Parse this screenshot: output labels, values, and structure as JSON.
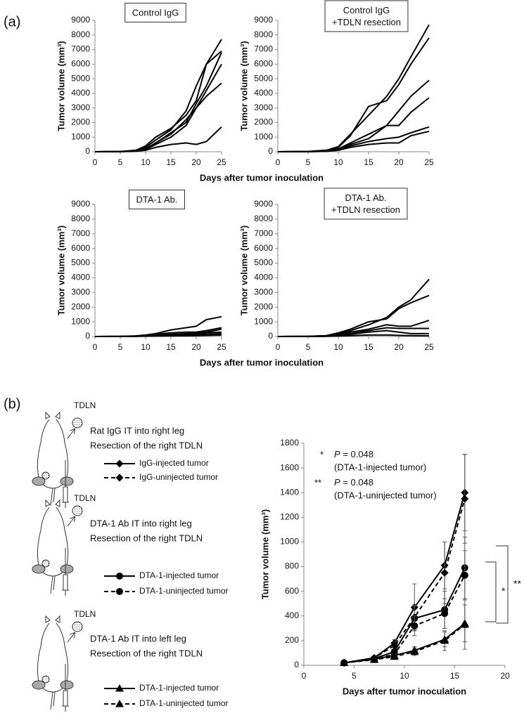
{
  "panels": [
    "(a)",
    "(b)"
  ],
  "schematics": [
    {
      "node": "TDLN",
      "lines": [
        "Rat IgG IT into right leg",
        "Resection of the right TDLN"
      ]
    },
    {
      "node": "TDLN",
      "lines": [
        "DTA-1 Ab IT into right leg",
        "Resection of the right TDLN"
      ]
    },
    {
      "node": "TDLN",
      "lines": [
        "DTA-1 Ab IT into left leg",
        "Resection of the right TDLN"
      ]
    }
  ],
  "chart_data": [
    {
      "type": "line",
      "title": [
        "Control IgG"
      ],
      "ylabel": "Tumor volume (mm³)",
      "xlabel": "Days after tumor inoculation",
      "x": [
        0,
        5,
        8,
        10,
        12,
        15,
        18,
        20,
        22,
        25
      ],
      "xlim": [
        0,
        25
      ],
      "xticks": [
        0,
        5,
        10,
        15,
        20,
        25
      ],
      "ylim": [
        0,
        9000
      ],
      "yticks": [
        0,
        1000,
        2000,
        3000,
        4000,
        5000,
        6000,
        7000,
        8000,
        9000
      ],
      "series": [
        {
          "color": "#000000",
          "values": [
            0,
            20,
            100,
            300,
            800,
            1500,
            2800,
            4500,
            6000,
            7700
          ]
        },
        {
          "color": "#000000",
          "values": [
            0,
            10,
            80,
            400,
            1000,
            1600,
            2500,
            3500,
            6000,
            6900
          ]
        },
        {
          "color": "#000000",
          "values": [
            0,
            10,
            60,
            200,
            600,
            1300,
            2000,
            3300,
            4500,
            6800
          ]
        },
        {
          "color": "#000000",
          "values": [
            0,
            10,
            50,
            150,
            500,
            1000,
            1800,
            3000,
            4200,
            6000
          ]
        },
        {
          "color": "#000000",
          "values": [
            0,
            10,
            50,
            200,
            600,
            1200,
            2200,
            3000,
            3800,
            4700
          ]
        },
        {
          "color": "#000000",
          "values": [
            0,
            5,
            30,
            100,
            300,
            500,
            600,
            500,
            700,
            1700
          ]
        }
      ]
    },
    {
      "type": "line",
      "title": [
        "Control IgG",
        "+TDLN resection"
      ],
      "ylabel": "Tumor volume (mm³)",
      "x": [
        0,
        5,
        8,
        10,
        12,
        15,
        18,
        20,
        22,
        25
      ],
      "xlim": [
        0,
        25
      ],
      "xticks": [
        0,
        5,
        10,
        15,
        20,
        25
      ],
      "ylim": [
        0,
        9000
      ],
      "yticks": [
        0,
        1000,
        2000,
        3000,
        4000,
        5000,
        6000,
        7000,
        8000,
        9000
      ],
      "series": [
        {
          "color": "#000000",
          "values": [
            0,
            20,
            100,
            350,
            1200,
            2500,
            3800,
            5000,
            6500,
            8700
          ]
        },
        {
          "color": "#000000",
          "values": [
            0,
            20,
            100,
            300,
            1100,
            3100,
            3500,
            4600,
            6000,
            7800
          ]
        },
        {
          "color": "#000000",
          "values": [
            0,
            10,
            50,
            200,
            600,
            1200,
            1800,
            2800,
            3800,
            4900
          ]
        },
        {
          "color": "#000000",
          "values": [
            0,
            10,
            50,
            150,
            500,
            900,
            1800,
            1800,
            2700,
            3700
          ]
        },
        {
          "color": "#000000",
          "values": [
            0,
            5,
            30,
            100,
            400,
            700,
            900,
            1000,
            1300,
            1700
          ]
        },
        {
          "color": "#000000",
          "values": [
            0,
            5,
            30,
            100,
            300,
            500,
            600,
            600,
            1100,
            1400
          ]
        }
      ]
    },
    {
      "type": "line",
      "title": [
        "DTA-1 Ab."
      ],
      "ylabel": "Tumor volume (mm³)",
      "xlabel": "Days after tumor inoculation",
      "x": [
        0,
        5,
        8,
        10,
        12,
        15,
        18,
        20,
        22,
        25
      ],
      "xlim": [
        0,
        25
      ],
      "xticks": [
        0,
        5,
        10,
        15,
        20,
        25
      ],
      "ylim": [
        0,
        9000
      ],
      "yticks": [
        0,
        1000,
        2000,
        3000,
        4000,
        5000,
        6000,
        7000,
        8000,
        9000
      ],
      "series": [
        {
          "color": "#000000",
          "values": [
            0,
            10,
            40,
            100,
            200,
            450,
            600,
            700,
            1150,
            1350
          ]
        },
        {
          "color": "#000000",
          "values": [
            0,
            5,
            30,
            80,
            150,
            250,
            300,
            300,
            400,
            600
          ]
        },
        {
          "color": "#000000",
          "values": [
            0,
            5,
            20,
            60,
            100,
            150,
            200,
            250,
            300,
            500
          ]
        },
        {
          "color": "#000000",
          "values": [
            0,
            5,
            20,
            50,
            80,
            100,
            150,
            200,
            250,
            300
          ]
        },
        {
          "color": "#000000",
          "values": [
            0,
            5,
            10,
            30,
            50,
            80,
            100,
            150,
            150,
            200
          ]
        },
        {
          "color": "#000000",
          "values": [
            0,
            0,
            10,
            20,
            30,
            40,
            50,
            60,
            80,
            100
          ]
        }
      ]
    },
    {
      "type": "line",
      "title": [
        "DTA-1 Ab.",
        "+TDLN resection"
      ],
      "ylabel": "Tumor volume (mm³)",
      "x": [
        0,
        5,
        8,
        10,
        12,
        15,
        18,
        20,
        22,
        25
      ],
      "xlim": [
        0,
        25
      ],
      "xticks": [
        0,
        5,
        10,
        15,
        20,
        25
      ],
      "ylim": [
        0,
        9000
      ],
      "yticks": [
        0,
        1000,
        2000,
        3000,
        4000,
        5000,
        6000,
        7000,
        8000,
        9000
      ],
      "series": [
        {
          "color": "#000000",
          "values": [
            0,
            10,
            50,
            200,
            400,
            800,
            1300,
            2000,
            2500,
            3900
          ]
        },
        {
          "color": "#000000",
          "values": [
            0,
            10,
            60,
            250,
            500,
            1000,
            1200,
            1900,
            2300,
            2800
          ]
        },
        {
          "color": "#000000",
          "values": [
            0,
            10,
            50,
            150,
            300,
            500,
            800,
            700,
            700,
            1100
          ]
        },
        {
          "color": "#000000",
          "values": [
            0,
            5,
            30,
            100,
            200,
            400,
            600,
            550,
            550,
            550
          ]
        },
        {
          "color": "#000000",
          "values": [
            0,
            5,
            20,
            80,
            150,
            300,
            400,
            300,
            200,
            200
          ]
        },
        {
          "color": "#000000",
          "values": [
            0,
            0,
            10,
            30,
            60,
            100,
            100,
            80,
            60,
            50
          ]
        }
      ]
    },
    {
      "type": "errorline",
      "ylabel": "Tumor volume (mm³)",
      "xlabel": "Days after tumor inoculation",
      "x": [
        4,
        7,
        9,
        11,
        14,
        16
      ],
      "xlim": [
        0,
        20
      ],
      "xticks": [
        0,
        5,
        10,
        15,
        20
      ],
      "ylim": [
        0,
        1800
      ],
      "yticks": [
        0,
        200,
        400,
        600,
        800,
        1000,
        1200,
        1400,
        1600,
        1800
      ],
      "annotations": [
        {
          "symbol": "*",
          "italic": "P",
          "text": " = 0.048",
          "note": "(DTA-1-injected tumor)"
        },
        {
          "symbol": "**",
          "italic": "P",
          "text": " = 0.048",
          "note": "(DTA-1-uninjected tumor)"
        }
      ],
      "brackets": [
        "*",
        "**"
      ],
      "series": [
        {
          "name": "IgG-injected tumor",
          "color": "#000000",
          "marker": "diamond",
          "dashed": false,
          "values": [
            20,
            60,
            180,
            470,
            810,
            1400
          ],
          "errors": [
            5,
            10,
            30,
            190,
            190,
            310
          ]
        },
        {
          "name": "IgG-uninjected tumor",
          "color": "#000000",
          "marker": "diamond",
          "dashed": true,
          "values": [
            20,
            60,
            160,
            390,
            750,
            1350
          ],
          "errors": [
            5,
            10,
            30,
            100,
            250,
            360
          ]
        },
        {
          "name": "DTA-1-injected tumor",
          "color": "#000000",
          "marker": "circle",
          "dashed": false,
          "values": [
            20,
            55,
            110,
            380,
            450,
            790
          ],
          "errors": [
            5,
            10,
            20,
            100,
            150,
            250
          ]
        },
        {
          "name": "DTA-1-uninjected tumor",
          "color": "#000000",
          "marker": "circle",
          "dashed": true,
          "values": [
            20,
            50,
            90,
            320,
            420,
            730
          ],
          "errors": [
            5,
            10,
            20,
            80,
            120,
            200
          ]
        },
        {
          "name": "DTA-1-injected tumor",
          "color": "#000000",
          "marker": "triangle",
          "dashed": false,
          "values": [
            20,
            50,
            80,
            120,
            210,
            340
          ],
          "errors": [
            5,
            10,
            15,
            30,
            60,
            150
          ]
        },
        {
          "name": "DTA-1-uninjected tumor",
          "color": "#000000",
          "marker": "triangle",
          "dashed": true,
          "values": [
            20,
            45,
            70,
            110,
            200,
            330
          ],
          "errors": [
            5,
            10,
            15,
            30,
            80,
            200
          ]
        }
      ]
    }
  ]
}
